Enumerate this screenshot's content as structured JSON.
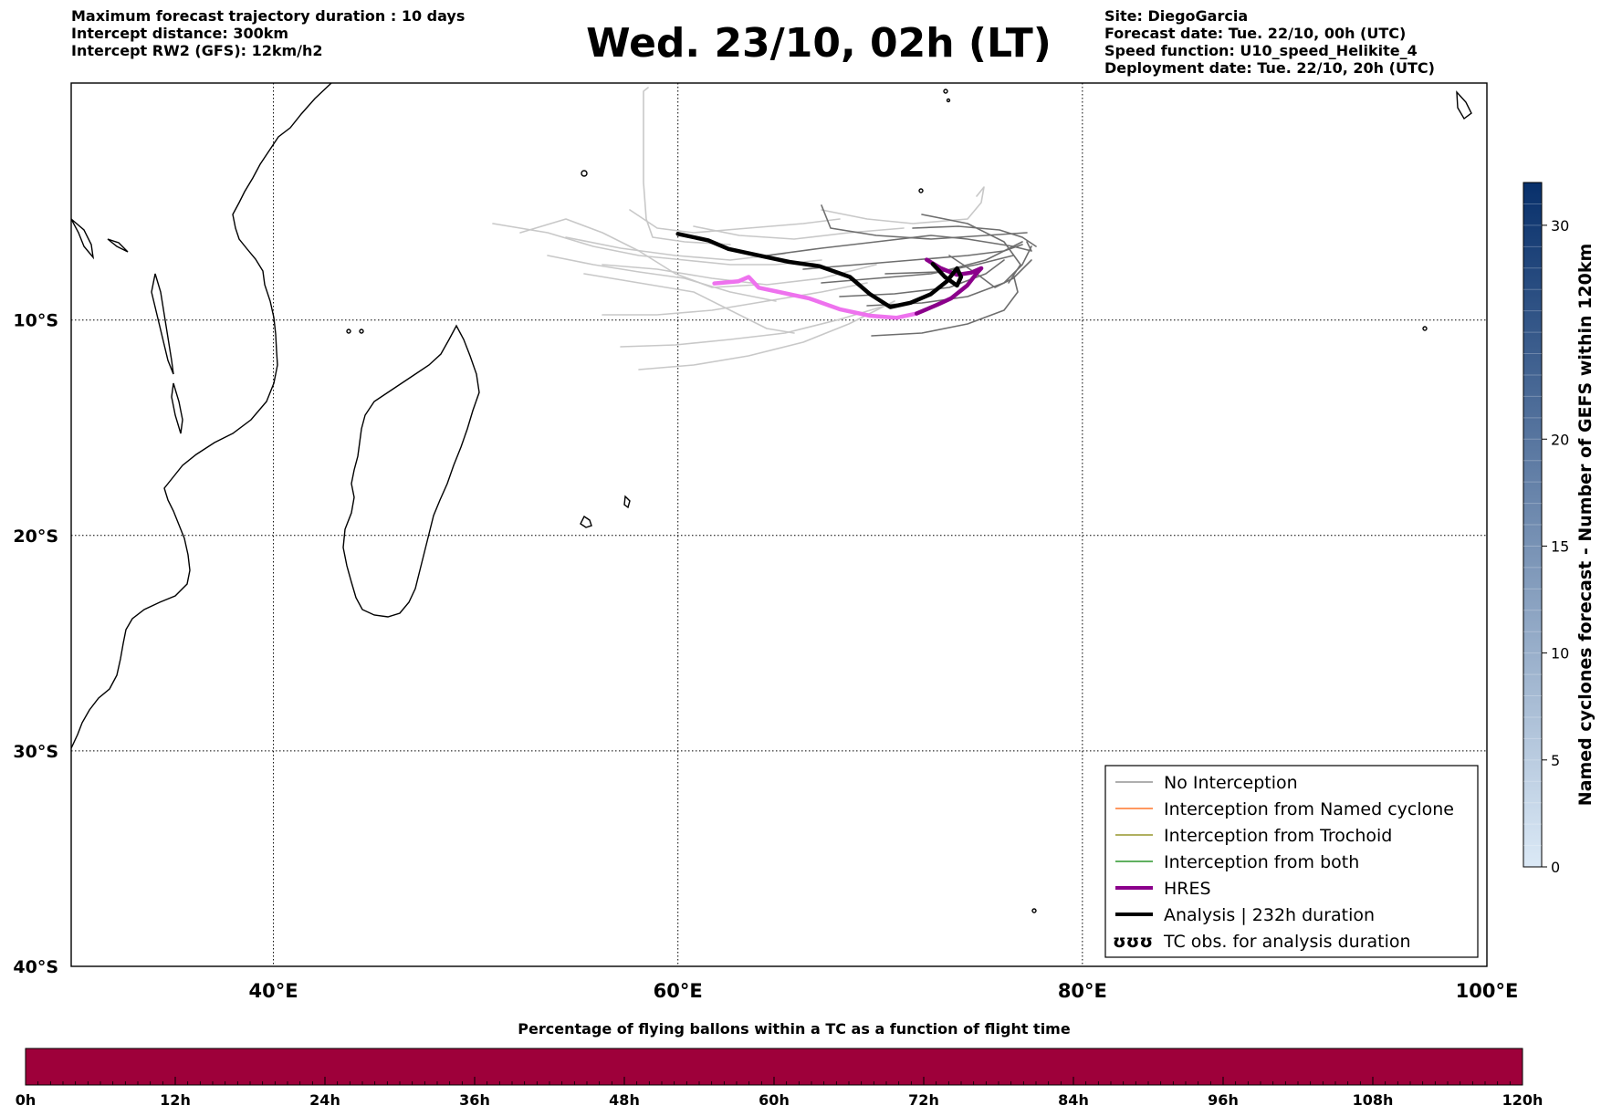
{
  "header": {
    "left_lines": [
      "Maximum forecast trajectory duration : 10 days",
      "Intercept distance: 300km",
      "Intercept RW2 (GFS):  12km/h2"
    ],
    "title": "Wed. 23/10, 02h (LT)",
    "right_lines": [
      "Site: DiegoGarcia",
      "Forecast date: Tue. 22/10, 00h (UTC)",
      "Speed function: U10_speed_Helikite_4",
      "Deployment date: Tue. 22/10, 20h (UTC)"
    ]
  },
  "map": {
    "lon_range": [
      30,
      100
    ],
    "lat_range": [
      -40,
      1
    ],
    "lat_ticks": [
      {
        "value": -10,
        "label": "10°S"
      },
      {
        "value": -20,
        "label": "20°S"
      },
      {
        "value": -30,
        "label": "30°S"
      },
      {
        "value": -40,
        "label": "40°S"
      }
    ],
    "lon_ticks": [
      {
        "value": 40,
        "label": "40°E"
      },
      {
        "value": 60,
        "label": "60°E"
      },
      {
        "value": 80,
        "label": "80°E"
      },
      {
        "value": 100,
        "label": "100°E"
      }
    ],
    "colors": {
      "no_interception": "#7f7f7f",
      "named_cyclone": "#ff5a00",
      "trochoid": "#808000",
      "both": "#008000",
      "hres": "#8b008b",
      "hres_light": "#ee72ee",
      "analysis": "#000000"
    },
    "analysis_track": [
      [
        60.0,
        -6.0
      ],
      [
        61.5,
        -6.3
      ],
      [
        62.5,
        -6.7
      ],
      [
        64.0,
        -7.0
      ],
      [
        65.5,
        -7.3
      ],
      [
        67.0,
        -7.5
      ],
      [
        68.5,
        -8.0
      ],
      [
        69.5,
        -8.8
      ],
      [
        70.5,
        -9.4
      ],
      [
        71.5,
        -9.2
      ],
      [
        72.5,
        -8.8
      ],
      [
        73.3,
        -8.2
      ],
      [
        73.8,
        -7.6
      ],
      [
        74.0,
        -8.0
      ],
      [
        73.8,
        -8.4
      ],
      [
        73.2,
        -8.0
      ],
      [
        72.6,
        -7.4
      ]
    ],
    "hres_track_light": [
      [
        61.8,
        -8.3
      ],
      [
        63.0,
        -8.2
      ],
      [
        63.5,
        -8.0
      ],
      [
        64.0,
        -8.5
      ],
      [
        65.0,
        -8.7
      ],
      [
        66.5,
        -9.0
      ],
      [
        68.0,
        -9.5
      ],
      [
        69.5,
        -9.8
      ],
      [
        70.8,
        -9.9
      ],
      [
        71.8,
        -9.7
      ]
    ],
    "hres_track_dark": [
      [
        71.8,
        -9.7
      ],
      [
        72.8,
        -9.3
      ],
      [
        73.5,
        -9.0
      ],
      [
        74.3,
        -8.4
      ],
      [
        74.8,
        -7.8
      ],
      [
        75.0,
        -7.6
      ],
      [
        74.5,
        -7.8
      ],
      [
        73.8,
        -7.9
      ],
      [
        73.0,
        -7.6
      ],
      [
        72.3,
        -7.2
      ]
    ]
  },
  "legend": {
    "items": [
      {
        "label": "No Interception",
        "type": "line",
        "color": "#7f7f7f",
        "width": 1.2
      },
      {
        "label": "Interception from Named cyclone",
        "type": "line",
        "color": "#ff5a00",
        "width": 1.2
      },
      {
        "label": "Interception from Trochoid",
        "type": "line",
        "color": "#808000",
        "width": 1.2
      },
      {
        "label": "Interception from both",
        "type": "line",
        "color": "#008000",
        "width": 1.2
      },
      {
        "label": "HRES",
        "type": "line",
        "color": "#8b008b",
        "width": 4
      },
      {
        "label": "Analysis | 232h duration",
        "type": "line",
        "color": "#000000",
        "width": 4
      },
      {
        "label": "TC obs. for analysis duration",
        "type": "symbol",
        "color": "#000000",
        "symbol": "ʊʊʊ"
      }
    ]
  },
  "colorbar_right": {
    "label": "Named cyclones forecast - Number of GEFS within 120km",
    "ticks": [
      {
        "value": 0,
        "label": "0"
      },
      {
        "value": 5,
        "label": "5"
      },
      {
        "value": 10,
        "label": "10"
      },
      {
        "value": 15,
        "label": "15"
      },
      {
        "value": 20,
        "label": "20"
      },
      {
        "value": 30,
        "label": "30"
      }
    ],
    "range": [
      0,
      32
    ],
    "color_low": "#dbe9f6",
    "color_high": "#08306b"
  },
  "colorbar_bottom": {
    "title": "Percentage of flying ballons within a TC as a function of flight time",
    "fill_color": "#9e003a",
    "ticks": [
      "0h",
      "12h",
      "24h",
      "36h",
      "48h",
      "60h",
      "72h",
      "84h",
      "96h",
      "108h",
      "120h"
    ]
  }
}
